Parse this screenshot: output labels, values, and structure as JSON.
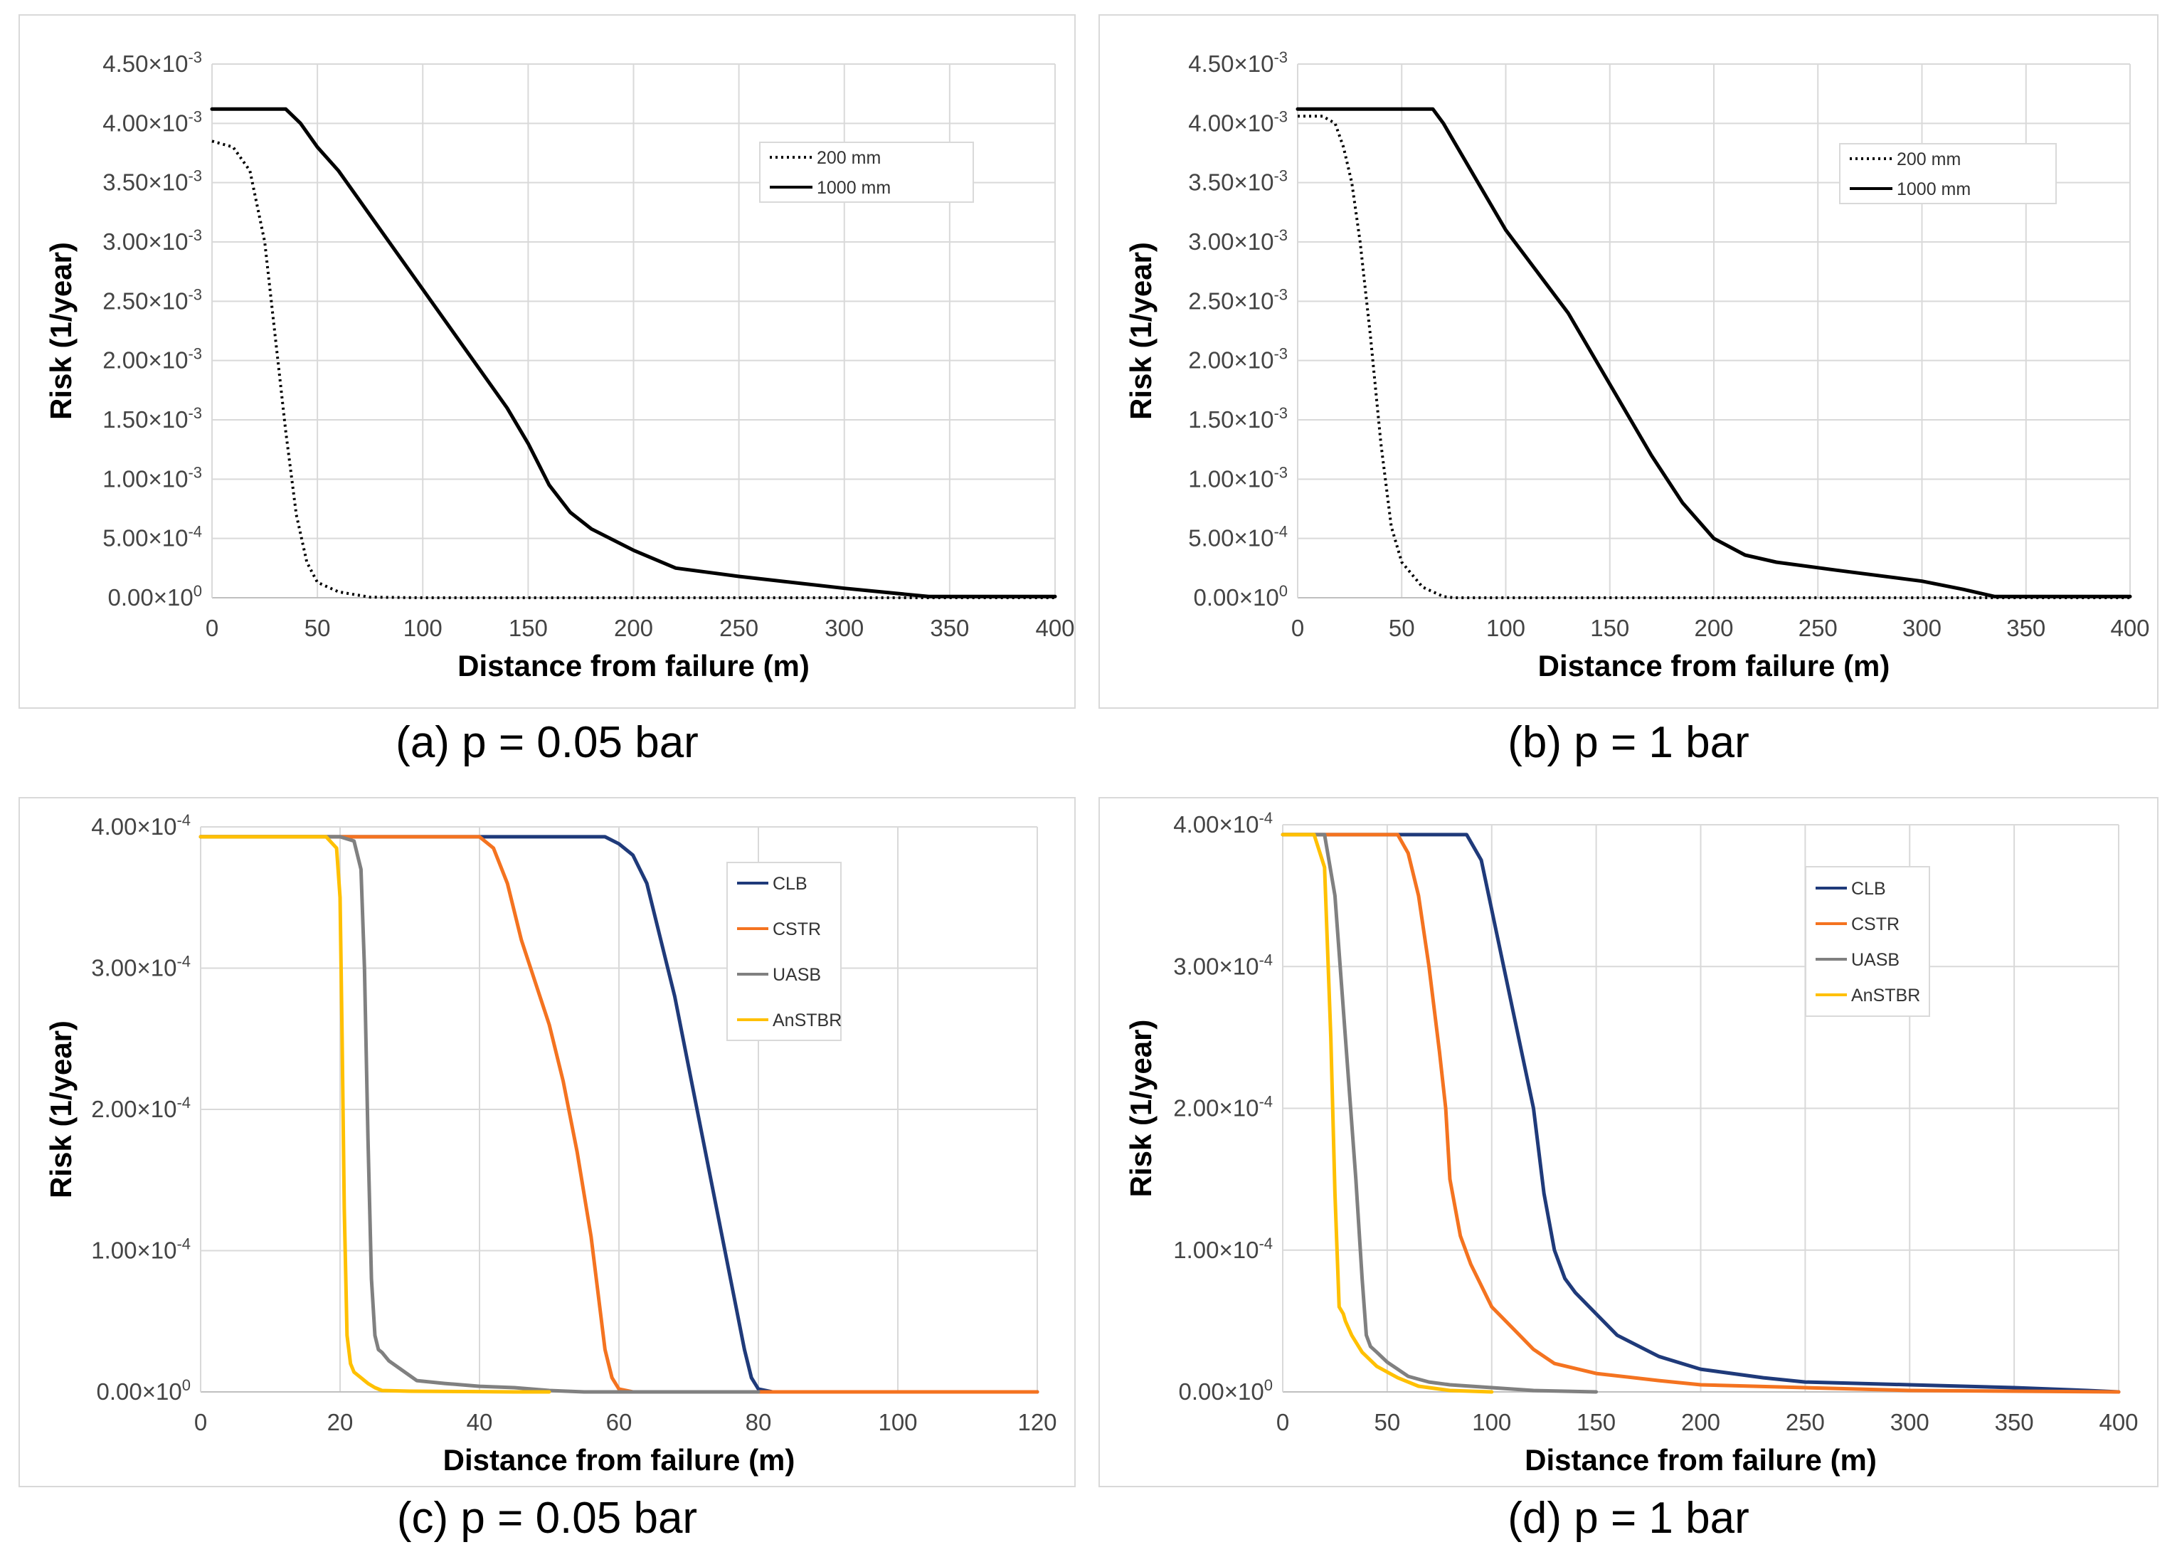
{
  "captions": [
    "(a) p = 0.05 bar",
    "(b) p = 1 bar",
    "(c) p = 0.05 bar",
    "(d) p = 1 bar"
  ],
  "chart_data": [
    {
      "type": "line",
      "xlabel": "Distance from failure (m)",
      "ylabel": "Risk (1/year)",
      "xlim": [
        0,
        400
      ],
      "ylim": [
        0,
        0.0045
      ],
      "x_ticks": [
        0,
        50,
        100,
        150,
        200,
        250,
        300,
        350,
        400
      ],
      "y_ticks": [
        0,
        0.0005,
        0.001,
        0.0015,
        0.002,
        0.0025,
        0.003,
        0.0035,
        0.004,
        0.0045
      ],
      "y_tick_labels": [
        [
          "0.00×10",
          "0"
        ],
        [
          "5.00×10",
          "-4"
        ],
        [
          "1.00×10",
          "-3"
        ],
        [
          "1.50×10",
          "-3"
        ],
        [
          "2.00×10",
          "-3"
        ],
        [
          "2.50×10",
          "-3"
        ],
        [
          "3.00×10",
          "-3"
        ],
        [
          "3.50×10",
          "-3"
        ],
        [
          "4.00×10",
          "-3"
        ],
        [
          "4.50×10",
          "-3"
        ]
      ],
      "grid": true,
      "legend_position": "top-right",
      "series": [
        {
          "name": "200 mm",
          "color": "#000000",
          "style": "dotted",
          "x": [
            0,
            10,
            18,
            25,
            30,
            35,
            40,
            45,
            50,
            60,
            75,
            100,
            400
          ],
          "y": [
            0.00385,
            0.0038,
            0.0036,
            0.003,
            0.0022,
            0.0014,
            0.0007,
            0.0003,
            0.00013,
            5e-05,
            5e-06,
            0,
            0
          ]
        },
        {
          "name": "1000 mm",
          "color": "#000000",
          "style": "solid",
          "x": [
            0,
            35,
            42,
            50,
            60,
            100,
            140,
            150,
            160,
            170,
            180,
            200,
            220,
            250,
            300,
            340,
            400
          ],
          "y": [
            0.00412,
            0.00412,
            0.004,
            0.0038,
            0.0036,
            0.0026,
            0.0016,
            0.0013,
            0.00095,
            0.00072,
            0.00058,
            0.0004,
            0.00025,
            0.00018,
            8e-05,
            1e-05,
            1e-05
          ]
        }
      ]
    },
    {
      "type": "line",
      "xlabel": "Distance from failure (m)",
      "ylabel": "Risk (1/year)",
      "xlim": [
        0,
        400
      ],
      "ylim": [
        0,
        0.0045
      ],
      "x_ticks": [
        0,
        50,
        100,
        150,
        200,
        250,
        300,
        350,
        400
      ],
      "y_ticks": [
        0,
        0.0005,
        0.001,
        0.0015,
        0.002,
        0.0025,
        0.003,
        0.0035,
        0.004,
        0.0045
      ],
      "y_tick_labels": [
        [
          "0.00×10",
          "0"
        ],
        [
          "5.00×10",
          "-4"
        ],
        [
          "1.00×10",
          "-3"
        ],
        [
          "1.50×10",
          "-3"
        ],
        [
          "2.00×10",
          "-3"
        ],
        [
          "2.50×10",
          "-3"
        ],
        [
          "3.00×10",
          "-3"
        ],
        [
          "3.50×10",
          "-3"
        ],
        [
          "4.00×10",
          "-3"
        ],
        [
          "4.50×10",
          "-3"
        ]
      ],
      "grid": true,
      "legend_position": "top-right",
      "series": [
        {
          "name": "200 mm",
          "color": "#000000",
          "style": "dotted",
          "x": [
            0,
            12,
            18,
            22,
            26,
            30,
            35,
            40,
            45,
            50,
            60,
            70,
            75,
            400
          ],
          "y": [
            0.00406,
            0.00406,
            0.004,
            0.0038,
            0.0035,
            0.003,
            0.0022,
            0.0013,
            0.0006,
            0.0003,
            9e-05,
            1e-05,
            0,
            0
          ]
        },
        {
          "name": "1000 mm",
          "color": "#000000",
          "style": "solid",
          "x": [
            0,
            65,
            70,
            80,
            100,
            130,
            150,
            170,
            185,
            200,
            215,
            230,
            260,
            300,
            320,
            335,
            400
          ],
          "y": [
            0.00412,
            0.00412,
            0.004,
            0.0037,
            0.0031,
            0.0024,
            0.0018,
            0.0012,
            0.0008,
            0.0005,
            0.00036,
            0.0003,
            0.00023,
            0.00014,
            7e-05,
            1e-05,
            1e-05
          ]
        }
      ]
    },
    {
      "type": "line",
      "xlabel": "Distance from failure (m)",
      "ylabel": "Risk (1/year)",
      "xlim": [
        0,
        120
      ],
      "ylim": [
        0,
        0.0004
      ],
      "x_ticks": [
        0,
        20,
        40,
        60,
        80,
        100,
        120
      ],
      "y_ticks": [
        0,
        0.0001,
        0.0002,
        0.0003,
        0.0004
      ],
      "y_tick_labels": [
        [
          "0.00×10",
          "0"
        ],
        [
          "1.00×10",
          "-4"
        ],
        [
          "2.00×10",
          "-4"
        ],
        [
          "3.00×10",
          "-4"
        ],
        [
          "4.00×10",
          "-4"
        ]
      ],
      "grid": true,
      "legend_position": "top-right",
      "series": [
        {
          "name": "CLB",
          "color": "#1f3a7a",
          "x": [
            0,
            58,
            60,
            62,
            64,
            66,
            68,
            70,
            72,
            74,
            76,
            78,
            79,
            80,
            82,
            120
          ],
          "y": [
            0.000393,
            0.000393,
            0.000388,
            0.00038,
            0.00036,
            0.00032,
            0.00028,
            0.00023,
            0.00018,
            0.00013,
            8e-05,
            3e-05,
            1e-05,
            2e-06,
            0,
            0
          ]
        },
        {
          "name": "CSTR",
          "color": "#f47320",
          "x": [
            0,
            40,
            42,
            44,
            46,
            48,
            50,
            52,
            54,
            55,
            56,
            57,
            58,
            59,
            60,
            62,
            80,
            120
          ],
          "y": [
            0.000393,
            0.000393,
            0.000385,
            0.00036,
            0.00032,
            0.00029,
            0.00026,
            0.00022,
            0.00017,
            0.00014,
            0.00011,
            7e-05,
            3e-05,
            1e-05,
            2e-06,
            0,
            0,
            0
          ]
        },
        {
          "name": "UASB",
          "color": "#808080",
          "x": [
            0,
            20,
            22,
            23,
            23.5,
            24,
            24.5,
            25,
            25.5,
            26,
            27,
            29,
            31,
            35,
            40,
            45,
            50,
            55,
            80
          ],
          "y": [
            0.000393,
            0.000393,
            0.00039,
            0.00037,
            0.0003,
            0.00018,
            8e-05,
            4e-05,
            3e-05,
            2.8e-05,
            2.2e-05,
            1.5e-05,
            8e-06,
            6e-06,
            4e-06,
            3e-06,
            1e-06,
            0,
            0
          ]
        },
        {
          "name": "AnSTBR",
          "color": "#ffc000",
          "x": [
            0,
            18,
            19.5,
            20,
            20.3,
            20.6,
            21,
            21.5,
            22,
            23,
            24,
            25,
            26,
            30,
            40,
            45,
            50
          ],
          "y": [
            0.000393,
            0.000393,
            0.000385,
            0.00035,
            0.00025,
            0.00013,
            4e-05,
            2e-05,
            1.4e-05,
            1e-05,
            6e-06,
            3e-06,
            1e-06,
            5e-07,
            2e-07,
            0,
            0
          ]
        }
      ]
    },
    {
      "type": "line",
      "xlabel": "Distance from failure (m)",
      "ylabel": "Risk (1/year)",
      "xlim": [
        0,
        400
      ],
      "ylim": [
        0,
        0.0004
      ],
      "x_ticks": [
        0,
        50,
        100,
        150,
        200,
        250,
        300,
        350,
        400
      ],
      "y_ticks": [
        0,
        0.0001,
        0.0002,
        0.0003,
        0.0004
      ],
      "y_tick_labels": [
        [
          "0.00×10",
          "0"
        ],
        [
          "1.00×10",
          "-4"
        ],
        [
          "2.00×10",
          "-4"
        ],
        [
          "3.00×10",
          "-4"
        ],
        [
          "4.00×10",
          "-4"
        ]
      ],
      "grid": true,
      "legend_position": "top-right",
      "series": [
        {
          "name": "CLB",
          "color": "#1f3a7a",
          "x": [
            0,
            88,
            95,
            100,
            110,
            120,
            125,
            130,
            135,
            140,
            150,
            160,
            180,
            200,
            230,
            250,
            300,
            350,
            385,
            400
          ],
          "y": [
            0.000393,
            0.000393,
            0.000375,
            0.00034,
            0.00027,
            0.0002,
            0.00014,
            0.0001,
            8e-05,
            7e-05,
            5.5e-05,
            4e-05,
            2.5e-05,
            1.6e-05,
            1e-05,
            7e-06,
            5e-06,
            3e-06,
            1e-06,
            0
          ]
        },
        {
          "name": "CSTR",
          "color": "#f47320",
          "x": [
            0,
            55,
            60,
            65,
            70,
            75,
            78,
            80,
            85,
            90,
            100,
            110,
            120,
            130,
            150,
            180,
            200,
            250,
            300,
            400
          ],
          "y": [
            0.000393,
            0.000393,
            0.00038,
            0.00035,
            0.0003,
            0.00024,
            0.0002,
            0.00015,
            0.00011,
            9e-05,
            6e-05,
            4.5e-05,
            3e-05,
            2e-05,
            1.3e-05,
            8e-06,
            5e-06,
            3e-06,
            1e-06,
            0
          ]
        },
        {
          "name": "UASB",
          "color": "#808080",
          "x": [
            0,
            20,
            25,
            30,
            35,
            38,
            40,
            42,
            45,
            50,
            55,
            60,
            70,
            80,
            100,
            120,
            150
          ],
          "y": [
            0.000393,
            0.000393,
            0.00035,
            0.00025,
            0.00015,
            8e-05,
            4e-05,
            3.2e-05,
            2.8e-05,
            2.1e-05,
            1.6e-05,
            1.1e-05,
            7e-06,
            5e-06,
            3e-06,
            1e-06,
            0
          ]
        },
        {
          "name": "AnSTBR",
          "color": "#ffc000",
          "x": [
            0,
            15,
            20,
            23,
            25,
            27,
            29,
            30,
            33,
            38,
            45,
            55,
            65,
            80,
            100
          ],
          "y": [
            0.000393,
            0.000393,
            0.00037,
            0.00025,
            0.00014,
            6e-05,
            5.5e-05,
            5e-05,
            4e-05,
            2.8e-05,
            1.8e-05,
            1e-05,
            4e-06,
            1e-06,
            0
          ]
        }
      ]
    }
  ]
}
